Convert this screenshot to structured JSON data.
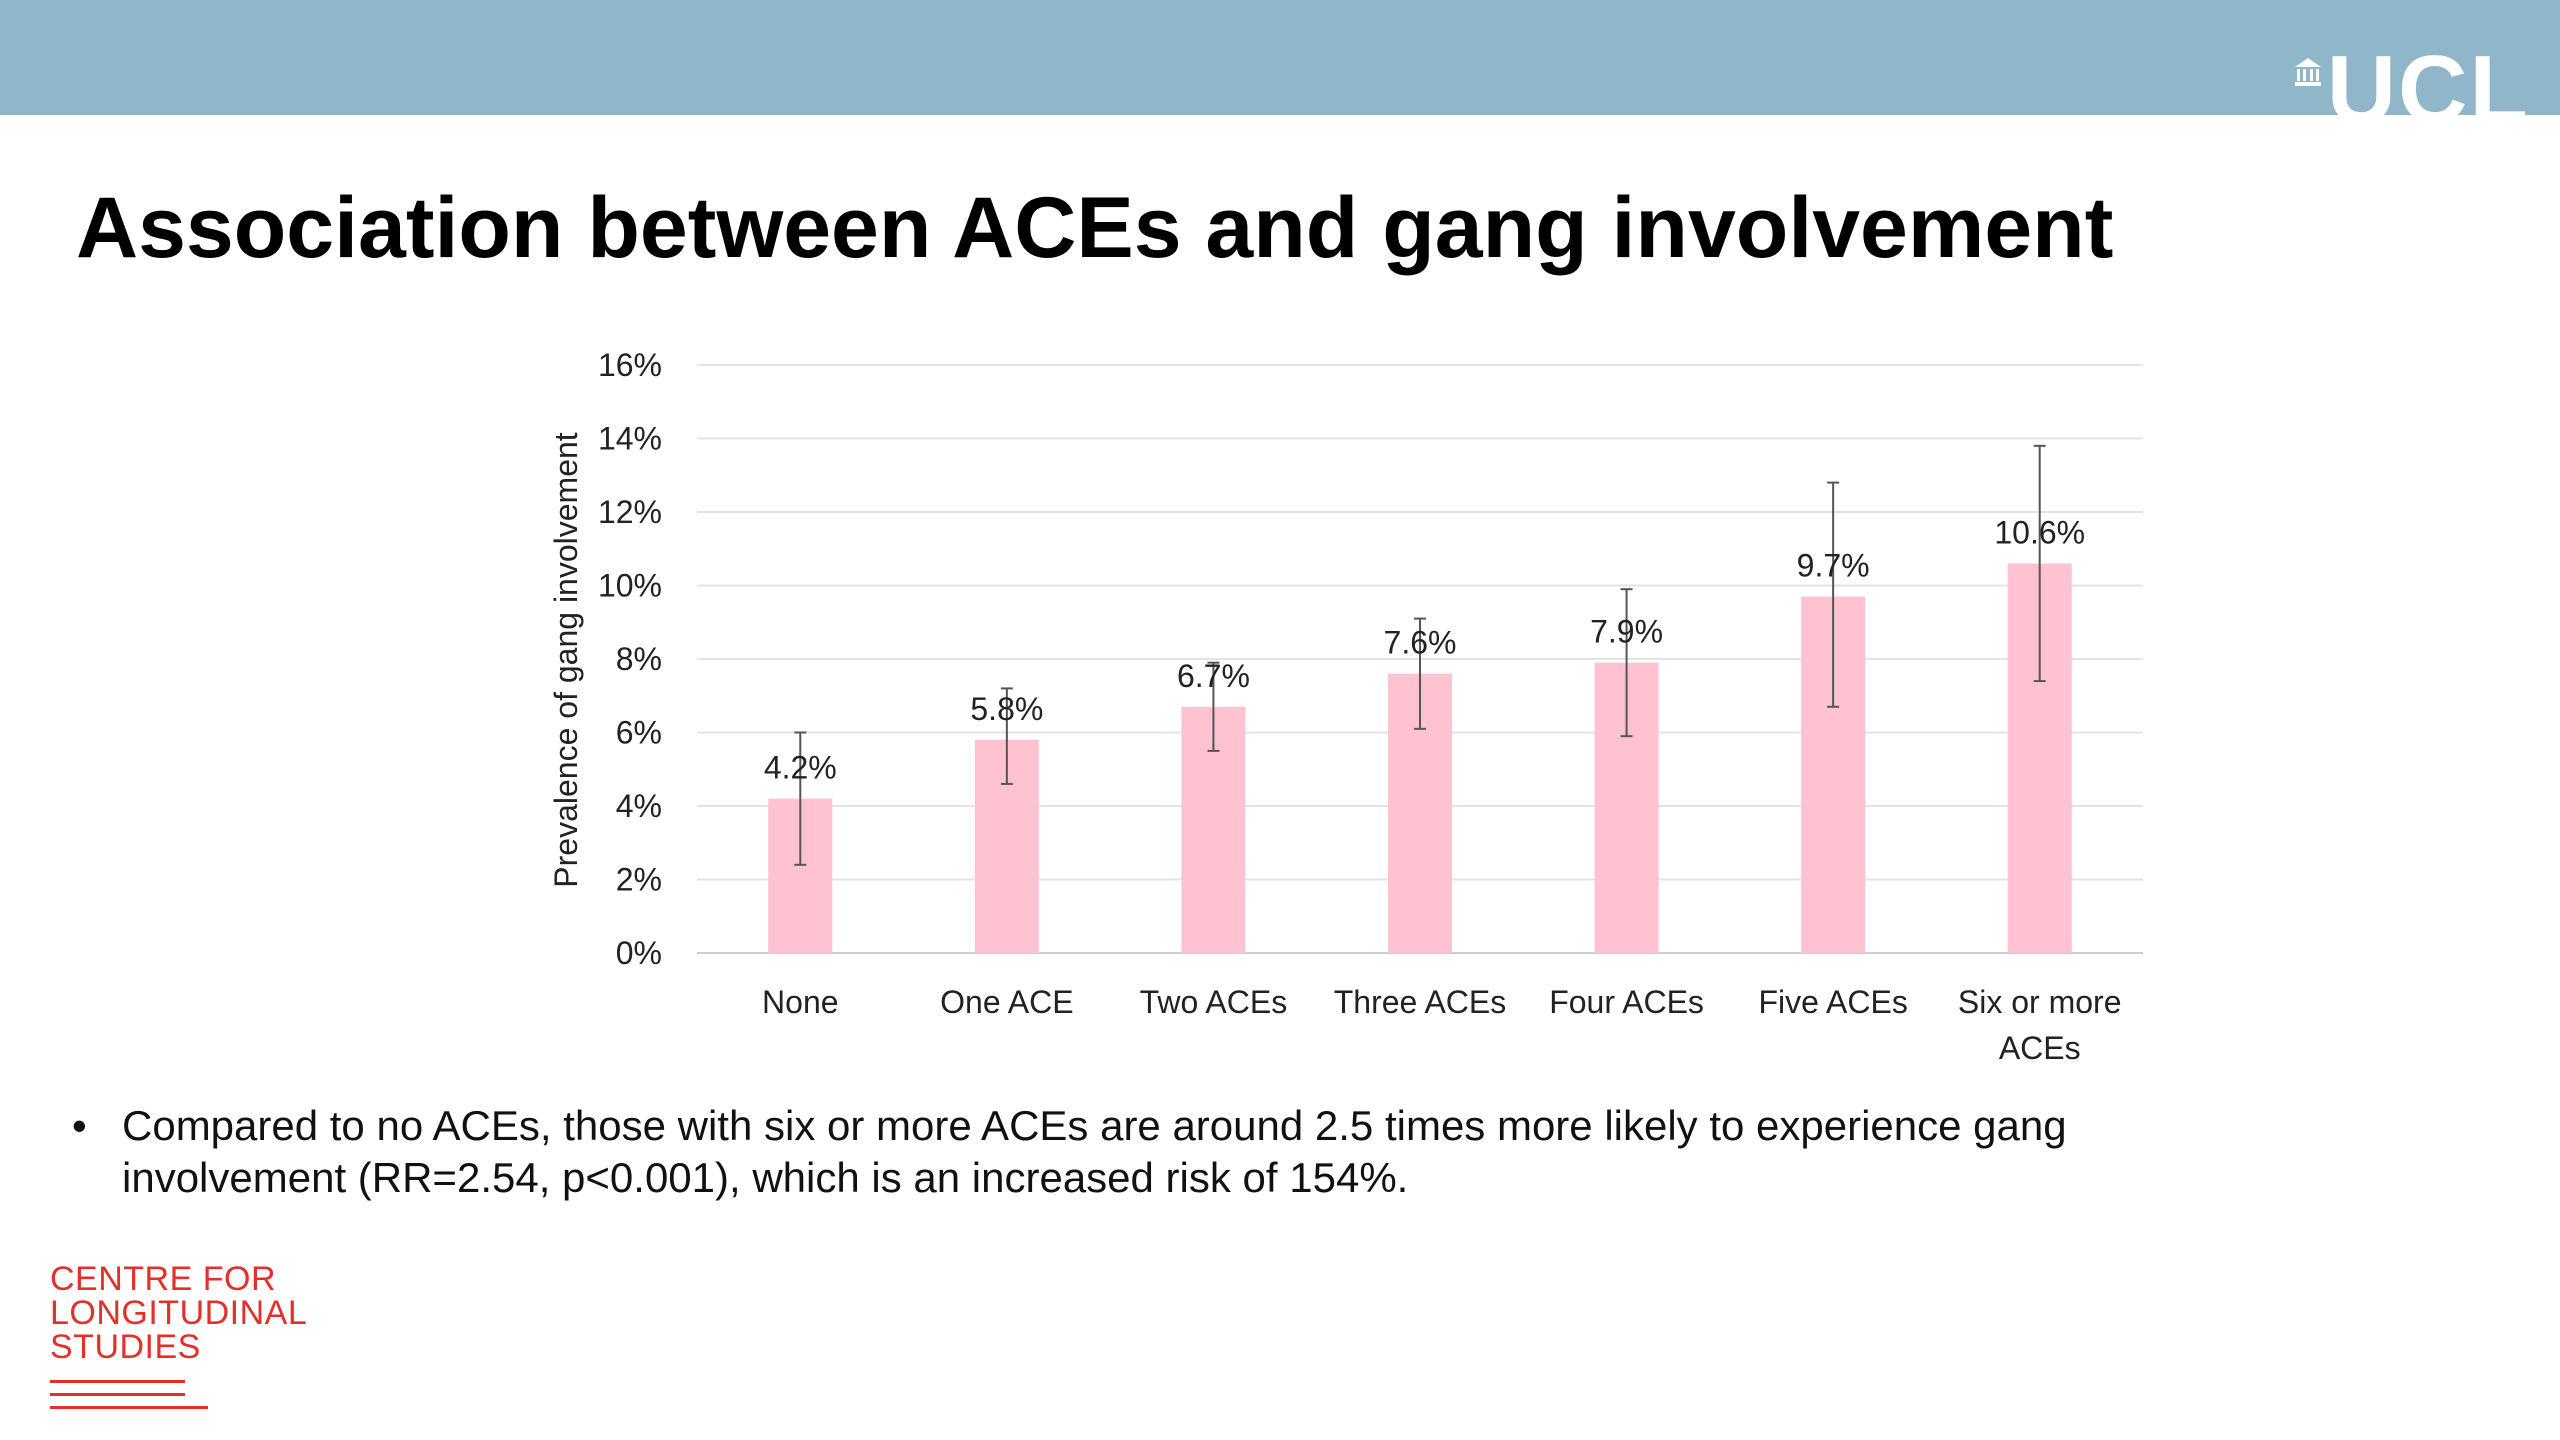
{
  "header": {
    "logo_text": "UCL",
    "band_color": "#8fb7c9"
  },
  "slide": {
    "title": "Association between ACEs and gang involvement"
  },
  "chart_data": {
    "type": "bar",
    "title": "",
    "xlabel": "",
    "ylabel": "Prevalence of gang involvement",
    "ylim": [
      0,
      16
    ],
    "yticks": [
      "0%",
      "2%",
      "4%",
      "6%",
      "8%",
      "10%",
      "12%",
      "14%",
      "16%"
    ],
    "grid": true,
    "bar_color": "#ffc2d1",
    "categories": [
      "None",
      "One ACE",
      "Two ACEs",
      "Three ACEs",
      "Four ACEs",
      "Five ACEs",
      "Six or more ACEs"
    ],
    "category_lines": [
      [
        "None"
      ],
      [
        "One ACE"
      ],
      [
        "Two ACEs"
      ],
      [
        "Three ACEs"
      ],
      [
        "Four ACEs"
      ],
      [
        "Five ACEs"
      ],
      [
        "Six or more",
        "ACEs"
      ]
    ],
    "values": [
      4.2,
      5.8,
      6.7,
      7.6,
      7.9,
      9.7,
      10.6
    ],
    "data_labels": [
      "4.2%",
      "5.8%",
      "6.7%",
      "7.6%",
      "7.9%",
      "9.7%",
      "10.6%"
    ],
    "error_low": [
      2.4,
      4.6,
      5.5,
      6.1,
      5.9,
      6.7,
      7.4
    ],
    "error_high": [
      6.0,
      7.2,
      7.9,
      9.1,
      9.9,
      12.8,
      13.8
    ]
  },
  "bullet": {
    "symbol": "•",
    "text": "Compared to no ACEs, those with six or more ACEs are around 2.5 times more likely to experience gang involvement (RR=2.54, p<0.001), which is an increased risk of 154%."
  },
  "footer_logo": {
    "lines": [
      "CENTRE FOR",
      "LONGITUDINAL",
      "STUDIES"
    ],
    "color": "#e2302a"
  }
}
